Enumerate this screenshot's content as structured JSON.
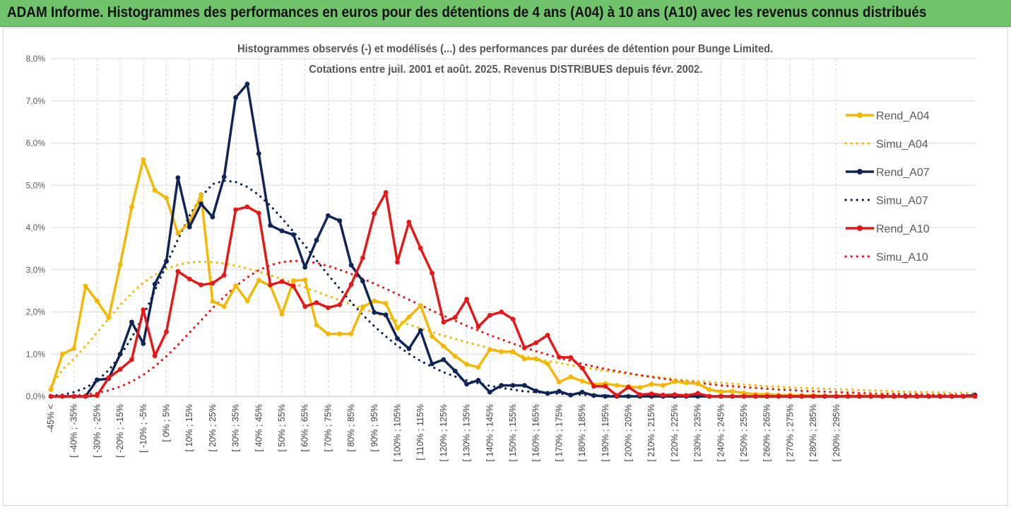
{
  "banner": {
    "title": "ADAM Informe. Histogrammes des performances en euros pour des détentions de 4 ans (A04) à 10 ans (A10) avec les revenus connus distribués"
  },
  "colors": {
    "A04": "#f5b800",
    "A07": "#0f2557",
    "A10": "#e81717",
    "banner": "#70c36a",
    "grid": "#d9d9d9"
  },
  "chart_data": {
    "type": "line",
    "title": "Histogrammes observés (-) et modélisés (...) des performances par durées de détention pour Bunge Limited.",
    "subtitle": "Cotations entre juil. 2001 et août. 2025. Revenus DISTRIBUES depuis févr. 2002.",
    "xlabel": "",
    "ylabel": "",
    "ylim": [
      0,
      0.08
    ],
    "y_ticks": [
      "0,0%",
      "1,0%",
      "2,0%",
      "3,0%",
      "4,0%",
      "5,0%",
      "6,0%",
      "7,0%",
      "8,0%"
    ],
    "x_tick_labels": [
      "-45% <",
      "[ -40% ; -35%",
      "[ -30% ; -25%",
      "[ -20% ; -15%",
      "[ -10% ; -5%",
      "[ 0% ; 5%",
      "[ 10% ; 15%",
      "[ 20% ; 25%",
      "[ 30% ; 35%",
      "[ 40% ; 45%",
      "[ 50% ; 55%",
      "[ 60% ; 65%",
      "[ 70% ; 75%",
      "[ 80% ; 85%",
      "[ 90% ; 95%",
      "[ 100% ; 105%",
      "[ 110% ; 115%",
      "[ 120% ; 125%",
      "[ 130% ; 135%",
      "[ 140% ; 145%",
      "[ 150% ; 155%",
      "[ 160% ; 165%",
      "[ 170% ; 175%",
      "[ 180% ; 185%",
      "[ 190% ; 195%",
      "[ 200% ; 205%",
      "[ 210% ; 215%",
      "[ 220% ; 225%",
      "[ 230% ; 235%",
      "[ 240% ; 245%",
      "[ 250% ; 255%",
      "[ 260% ; 265%",
      "[ 270% ; 275%",
      "[ 280% ; 285%",
      "[ 290% ; 295%"
    ],
    "legend_position": "right",
    "series": [
      {
        "name": "Rend_A04",
        "style": "solid",
        "color": "#f5b800",
        "values": [
          0.0016,
          0.01,
          0.0114,
          0.0261,
          0.0226,
          0.0186,
          0.0312,
          0.0449,
          0.0561,
          0.0488,
          0.047,
          0.0386,
          0.0413,
          0.0478,
          0.0225,
          0.0213,
          0.0262,
          0.0226,
          0.0275,
          0.0262,
          0.0195,
          0.0274,
          0.0276,
          0.0169,
          0.0148,
          0.0148,
          0.0148,
          0.0212,
          0.0226,
          0.022,
          0.0162,
          0.0188,
          0.0215,
          0.0142,
          0.0119,
          0.0095,
          0.0076,
          0.0069,
          0.0111,
          0.0106,
          0.0106,
          0.0089,
          0.0089,
          0.0077,
          0.0034,
          0.0046,
          0.0036,
          0.0028,
          0.003,
          0.0026,
          0.0023,
          0.0021,
          0.0029,
          0.0026,
          0.0035,
          0.0032,
          0.003,
          0.0016,
          0.0011,
          0.0012,
          0.0008,
          0.0005,
          0.0005,
          0.0003,
          0.0003,
          0.0002,
          0.0002,
          0.0001,
          0.0001,
          0.0001,
          0.0001,
          0.0001,
          0.0001,
          0.0,
          0.0,
          0.0,
          0.0,
          0.0,
          0.0,
          0.0,
          0.0
        ]
      },
      {
        "name": "Simu_A04",
        "style": "dotted",
        "color": "#f5b800",
        "values": [
          0.0024,
          0.0063,
          0.0089,
          0.0119,
          0.0151,
          0.0184,
          0.0216,
          0.0244,
          0.0269,
          0.0288,
          0.0302,
          0.0312,
          0.0317,
          0.0319,
          0.0318,
          0.0315,
          0.031,
          0.0303,
          0.0295,
          0.0287,
          0.0278,
          0.0268,
          0.0258,
          0.0248,
          0.0238,
          0.0228,
          0.0218,
          0.0208,
          0.0198,
          0.0188,
          0.0179,
          0.017,
          0.0161,
          0.0152,
          0.0144,
          0.0136,
          0.0128,
          0.0121,
          0.0114,
          0.0107,
          0.0101,
          0.0095,
          0.0089,
          0.0084,
          0.0079,
          0.0074,
          0.0069,
          0.0065,
          0.0061,
          0.0057,
          0.0053,
          0.005,
          0.0047,
          0.0044,
          0.0041,
          0.0038,
          0.0036,
          0.0034,
          0.0032,
          0.003,
          0.0028,
          0.0026,
          0.0024,
          0.0023,
          0.0021,
          0.002,
          0.0019,
          0.0018,
          0.0017,
          0.0016,
          0.0015,
          0.0014,
          0.0013,
          0.0012,
          0.0011,
          0.001,
          0.001,
          0.0009,
          0.0008,
          0.0008,
          0.0007
        ]
      },
      {
        "name": "Rend_A07",
        "style": "solid",
        "color": "#0f2557",
        "values": [
          0.0,
          0.0,
          0.0,
          0.0,
          0.0039,
          0.0042,
          0.01,
          0.0176,
          0.0125,
          0.0266,
          0.032,
          0.0518,
          0.0401,
          0.0456,
          0.0425,
          0.052,
          0.0708,
          0.074,
          0.0575,
          0.0405,
          0.0392,
          0.0383,
          0.0306,
          0.037,
          0.0428,
          0.0416,
          0.0311,
          0.0273,
          0.0199,
          0.0193,
          0.0137,
          0.0113,
          0.0156,
          0.0077,
          0.0087,
          0.006,
          0.0029,
          0.0038,
          0.001,
          0.0026,
          0.0026,
          0.0026,
          0.0013,
          0.0007,
          0.0012,
          0.0003,
          0.001,
          0.0002,
          0.0,
          0.0,
          0.0,
          0.0,
          0.0,
          0.0,
          0.0,
          0.0,
          0.0,
          0.0,
          0.0,
          0.0,
          0.0,
          0.0,
          0.0,
          0.0,
          0.0,
          0.0,
          0.0,
          0.0,
          0.0,
          0.0,
          0.0,
          0.0,
          0.0,
          0.0,
          0.0,
          0.0,
          0.0,
          0.0,
          0.0,
          0.0,
          0.0003
        ]
      },
      {
        "name": "Simu_A07",
        "style": "dotted",
        "color": "#0f2557",
        "values": [
          0.0001,
          0.0004,
          0.001,
          0.002,
          0.0037,
          0.0062,
          0.0096,
          0.0139,
          0.0191,
          0.025,
          0.0312,
          0.0372,
          0.0428,
          0.0472,
          0.0503,
          0.0511,
          0.0508,
          0.0496,
          0.0477,
          0.0452,
          0.0422,
          0.039,
          0.0357,
          0.0322,
          0.0288,
          0.0255,
          0.0223,
          0.0193,
          0.0166,
          0.0142,
          0.012,
          0.0101,
          0.0084,
          0.007,
          0.0057,
          0.0047,
          0.0038,
          0.0031,
          0.0025,
          0.002,
          0.0016,
          0.0012,
          0.001,
          0.0008,
          0.0006,
          0.0005,
          0.0004,
          0.0003,
          0.0002,
          0.0002,
          0.0001,
          0.0001,
          0.0001,
          0.0,
          0.0,
          0.0,
          0.0,
          0.0,
          0.0,
          0.0,
          0.0,
          0.0,
          0.0,
          0.0,
          0.0,
          0.0,
          0.0,
          0.0,
          0.0,
          0.0,
          0.0,
          0.0,
          0.0,
          0.0,
          0.0,
          0.0,
          0.0,
          0.0,
          0.0,
          0.0,
          0.0
        ]
      },
      {
        "name": "Rend_A10",
        "style": "solid",
        "color": "#e81717",
        "values": [
          0.0,
          0.0,
          0.0,
          0.0,
          0.0002,
          0.0044,
          0.0064,
          0.0087,
          0.0205,
          0.0096,
          0.0153,
          0.0296,
          0.0278,
          0.0264,
          0.0268,
          0.0287,
          0.0442,
          0.0449,
          0.0434,
          0.0264,
          0.0272,
          0.0261,
          0.0213,
          0.0222,
          0.021,
          0.0217,
          0.0265,
          0.0328,
          0.0433,
          0.0483,
          0.0318,
          0.0413,
          0.0351,
          0.0292,
          0.0176,
          0.0187,
          0.023,
          0.0165,
          0.0192,
          0.02,
          0.0183,
          0.0115,
          0.0127,
          0.0145,
          0.0093,
          0.0092,
          0.0067,
          0.0024,
          0.0024,
          0.0002,
          0.0022,
          0.0004,
          0.0006,
          0.0003,
          0.0004,
          0.0002,
          0.0007,
          0.0,
          0.0,
          0.0,
          0.0,
          0.0,
          0.0,
          0.0,
          0.0,
          0.0,
          0.0,
          0.0,
          0.0,
          0.0,
          0.0,
          0.0,
          0.0,
          0.0,
          0.0,
          0.0,
          0.0,
          0.0,
          0.0,
          0.0,
          0.0
        ]
      },
      {
        "name": "Simu_A10",
        "style": "dotted",
        "color": "#e81717",
        "values": [
          0.0,
          0.0001,
          0.0002,
          0.0004,
          0.0008,
          0.0014,
          0.0023,
          0.0035,
          0.0051,
          0.0071,
          0.0095,
          0.0122,
          0.0151,
          0.018,
          0.0209,
          0.0236,
          0.0261,
          0.0282,
          0.0299,
          0.0311,
          0.0318,
          0.0321,
          0.032,
          0.0316,
          0.0309,
          0.03,
          0.029,
          0.0279,
          0.0267,
          0.0255,
          0.0242,
          0.0229,
          0.0216,
          0.0203,
          0.0191,
          0.0179,
          0.0167,
          0.0156,
          0.0145,
          0.0135,
          0.0125,
          0.0116,
          0.0107,
          0.0099,
          0.0091,
          0.0084,
          0.0077,
          0.0071,
          0.0065,
          0.006,
          0.0055,
          0.005,
          0.0046,
          0.0042,
          0.0038,
          0.0035,
          0.0032,
          0.0029,
          0.0026,
          0.0024,
          0.0022,
          0.002,
          0.0018,
          0.0016,
          0.0015,
          0.0013,
          0.0012,
          0.0011,
          0.001,
          0.0009,
          0.0008,
          0.0007,
          0.0006,
          0.0006,
          0.0005,
          0.0005,
          0.0004,
          0.0004,
          0.0003,
          0.0003,
          0.0003
        ]
      }
    ]
  }
}
